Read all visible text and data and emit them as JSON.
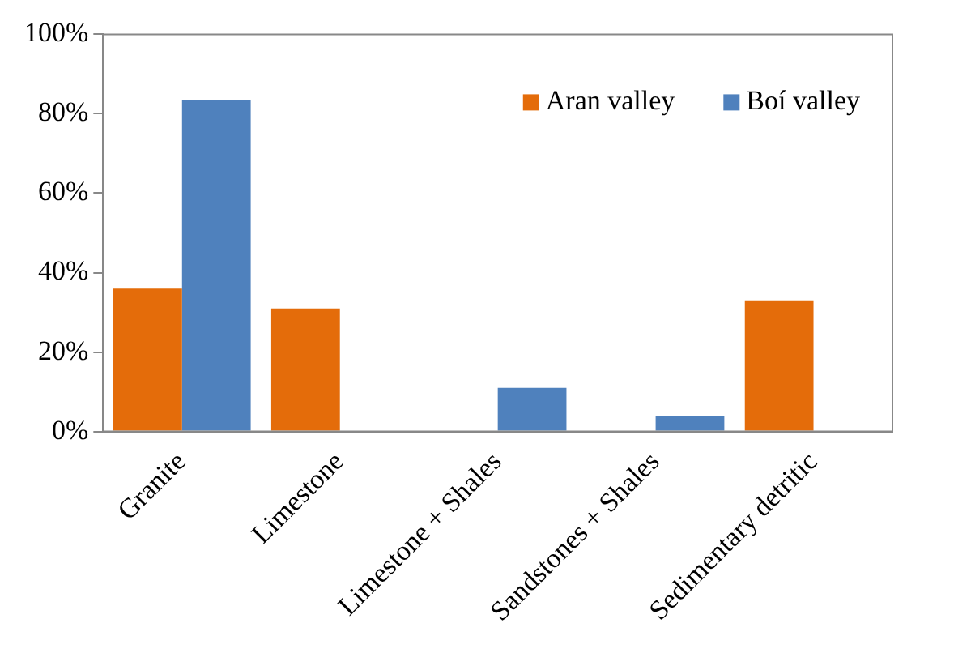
{
  "chart_data": {
    "type": "bar",
    "categories": [
      "Granite",
      "Limestone",
      "Limestone + Shales",
      "Sandstones + Shales",
      "Sedimentary detritic"
    ],
    "series": [
      {
        "name": "Aran valley",
        "color": "#e46c0a",
        "values": [
          36,
          31,
          null,
          null,
          33
        ]
      },
      {
        "name": "Boí valley",
        "color": "#4f81bd",
        "values": [
          83.5,
          null,
          11,
          4,
          null
        ]
      }
    ],
    "ylim": [
      0,
      100
    ],
    "yticks": [
      {
        "value": 0,
        "label": "0%"
      },
      {
        "value": 20,
        "label": "20%"
      },
      {
        "value": 40,
        "label": "40%"
      },
      {
        "value": 60,
        "label": "60%"
      },
      {
        "value": 80,
        "label": "80%"
      },
      {
        "value": 100,
        "label": "100%"
      }
    ],
    "grid": false,
    "legend": "top right"
  }
}
